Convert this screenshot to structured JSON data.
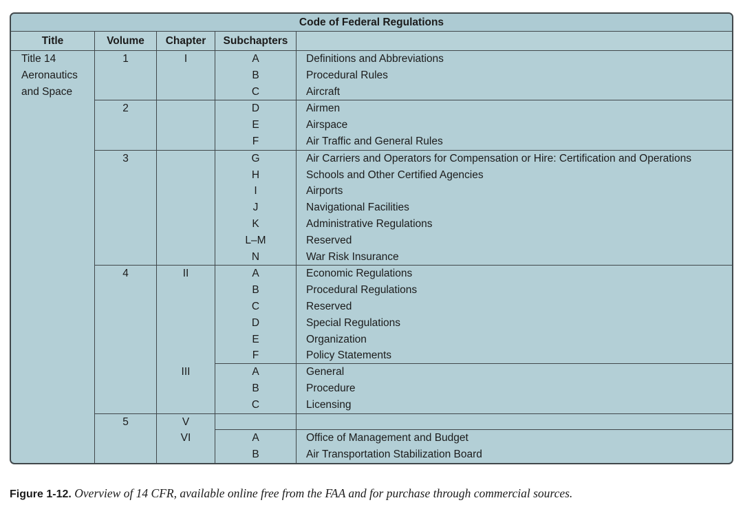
{
  "table": {
    "title": "Code of Federal Regulations",
    "columns": [
      "Title",
      "Volume",
      "Chapter",
      "Subchapters",
      ""
    ],
    "title_cell": {
      "lines": [
        "Title 14",
        "Aeronautics",
        "and Space"
      ]
    },
    "volumes": [
      {
        "volume": "1",
        "chapters": [
          {
            "chapter": "I",
            "rows": [
              {
                "sub": "A",
                "desc": "Definitions and Abbreviations"
              },
              {
                "sub": "B",
                "desc": "Procedural Rules"
              },
              {
                "sub": "C",
                "desc": "Aircraft"
              }
            ]
          }
        ]
      },
      {
        "volume": "2",
        "chapters": [
          {
            "chapter": "",
            "rows": [
              {
                "sub": "D",
                "desc": "Airmen"
              },
              {
                "sub": "E",
                "desc": "Airspace"
              },
              {
                "sub": "F",
                "desc": "Air Traffic and General Rules"
              }
            ]
          }
        ]
      },
      {
        "volume": "3",
        "chapters": [
          {
            "chapter": "",
            "rows": [
              {
                "sub": "G",
                "desc": "Air Carriers and Operators for Compensation or Hire: Certification and Operations"
              },
              {
                "sub": "H",
                "desc": "Schools and Other Certified Agencies"
              },
              {
                "sub": "I",
                "desc": "Airports"
              },
              {
                "sub": "J",
                "desc": "Navigational Facilities"
              },
              {
                "sub": "K",
                "desc": "Administrative Regulations"
              },
              {
                "sub": "L–M",
                "desc": "Reserved"
              },
              {
                "sub": "N",
                "desc": "War Risk Insurance"
              }
            ]
          }
        ]
      },
      {
        "volume": "4",
        "chapters": [
          {
            "chapter": "II",
            "rows": [
              {
                "sub": "A",
                "desc": "Economic Regulations"
              },
              {
                "sub": "B",
                "desc": "Procedural Regulations"
              },
              {
                "sub": "C",
                "desc": "Reserved"
              },
              {
                "sub": "D",
                "desc": "Special Regulations"
              },
              {
                "sub": "E",
                "desc": "Organization"
              },
              {
                "sub": "F",
                "desc": "Policy Statements"
              }
            ]
          },
          {
            "chapter": "III",
            "rows": [
              {
                "sub": "A",
                "desc": "General"
              },
              {
                "sub": "B",
                "desc": "Procedure"
              },
              {
                "sub": "C",
                "desc": "Licensing"
              }
            ]
          }
        ]
      },
      {
        "volume": "5",
        "chapters": [
          {
            "chapter": "V",
            "rows": [
              {
                "sub": "",
                "desc": ""
              }
            ]
          },
          {
            "chapter": "VI",
            "rows": [
              {
                "sub": "A",
                "desc": "Office of Management and Budget"
              },
              {
                "sub": "B",
                "desc": "Air Transportation Stabilization Board"
              }
            ]
          }
        ]
      }
    ]
  },
  "caption": {
    "label": "Figure 1-12.",
    "text": "Overview of 14 CFR, available online free from the FAA and for purchase through commercial sources."
  },
  "colors": {
    "table_bg": "#b3cfd6",
    "banner_bg": "#adcbd3",
    "header_bg": "#b7d2d8",
    "border": "#40474a",
    "text": "#1b1b1b"
  }
}
